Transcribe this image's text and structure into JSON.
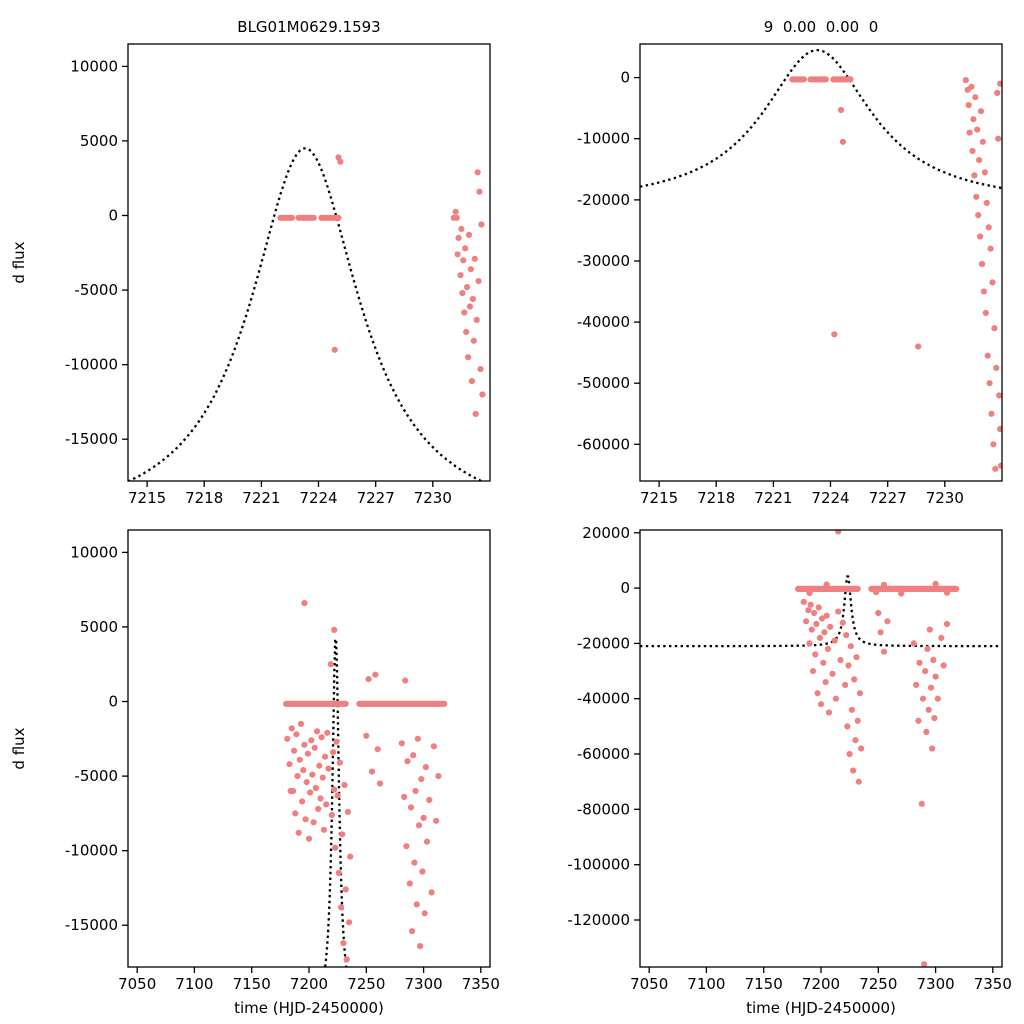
{
  "figure": {
    "background": "#ffffff",
    "point_color": "#F08080",
    "curve_color": "#000000"
  },
  "chart_data": [
    {
      "id": "top-left",
      "type": "scatter",
      "title": "BLG01M0629.1593",
      "xlabel": "",
      "ylabel": "d flux",
      "xlim": [
        7214,
        7233
      ],
      "ylim": [
        -17800,
        11500
      ],
      "xticks": [
        7215,
        7218,
        7221,
        7224,
        7227,
        7230
      ],
      "yticks": [
        -15000,
        -10000,
        -5000,
        0,
        5000,
        10000
      ],
      "grid": false,
      "legend": false,
      "model_curve": {
        "shape": "lorentzian",
        "t0": 7223.3,
        "peak": 4500,
        "baseline": -21000,
        "width": 3.5
      },
      "zero_band": {
        "y": -150,
        "step": 0.1,
        "runs": [
          [
            7222.0,
            7222.6
          ],
          [
            7222.95,
            7223.8
          ],
          [
            7224.15,
            7225.05
          ]
        ]
      },
      "points": [
        [
          7225.05,
          3900
        ],
        [
          7225.15,
          3600
        ],
        [
          7224.85,
          -9000
        ],
        [
          7231.1,
          -150
        ],
        [
          7231.25,
          -150
        ],
        [
          7231.2,
          250
        ],
        [
          7231.35,
          -1500
        ],
        [
          7231.3,
          -2600
        ],
        [
          7231.45,
          -4000
        ],
        [
          7231.5,
          -900
        ],
        [
          7231.55,
          -5200
        ],
        [
          7231.6,
          -3000
        ],
        [
          7231.65,
          -6500
        ],
        [
          7231.7,
          -2200
        ],
        [
          7231.75,
          -7800
        ],
        [
          7231.8,
          -4800
        ],
        [
          7231.85,
          -9500
        ],
        [
          7231.9,
          -1300
        ],
        [
          7231.95,
          -6100
        ],
        [
          7232.0,
          -3600
        ],
        [
          7232.05,
          -11100
        ],
        [
          7232.1,
          -5600
        ],
        [
          7232.15,
          -8400
        ],
        [
          7232.2,
          -2900
        ],
        [
          7232.25,
          -13300
        ],
        [
          7232.3,
          -7000
        ],
        [
          7232.35,
          2900
        ],
        [
          7232.4,
          -4400
        ],
        [
          7232.45,
          1600
        ],
        [
          7232.5,
          -10300
        ],
        [
          7232.55,
          -600
        ],
        [
          7232.6,
          -12000
        ]
      ]
    },
    {
      "id": "top-right",
      "type": "scatter",
      "title": "9  0.00  0.00  0",
      "xlabel": "",
      "ylabel": "",
      "xlim": [
        7214,
        7233
      ],
      "ylim": [
        -66000,
        5500
      ],
      "xticks": [
        7215,
        7218,
        7221,
        7224,
        7227,
        7230
      ],
      "yticks": [
        -60000,
        -50000,
        -40000,
        -30000,
        -20000,
        -10000,
        0
      ],
      "grid": false,
      "legend": false,
      "model_curve": {
        "shape": "lorentzian",
        "t0": 7223.3,
        "peak": 4500,
        "baseline": -21000,
        "width": 3.5
      },
      "zero_band": {
        "y": -300,
        "step": 0.1,
        "runs": [
          [
            7222.0,
            7222.6
          ],
          [
            7222.95,
            7223.8
          ],
          [
            7224.15,
            7225.05
          ]
        ]
      },
      "points": [
        [
          7224.55,
          -5300
        ],
        [
          7224.65,
          -10500
        ],
        [
          7224.2,
          -42000
        ],
        [
          7228.6,
          -44000
        ],
        [
          7231.1,
          -400
        ],
        [
          7231.2,
          -2000
        ],
        [
          7231.25,
          -4500
        ],
        [
          7231.3,
          -9000
        ],
        [
          7231.4,
          -1500
        ],
        [
          7231.45,
          -12000
        ],
        [
          7231.5,
          -6800
        ],
        [
          7231.55,
          -16000
        ],
        [
          7231.6,
          -3200
        ],
        [
          7231.65,
          -19500
        ],
        [
          7231.7,
          -8500
        ],
        [
          7231.75,
          -22500
        ],
        [
          7231.8,
          -13500
        ],
        [
          7231.85,
          -26000
        ],
        [
          7231.9,
          -5500
        ],
        [
          7231.95,
          -30500
        ],
        [
          7232.0,
          -10500
        ],
        [
          7232.05,
          -35000
        ],
        [
          7232.1,
          -15500
        ],
        [
          7232.15,
          -38500
        ],
        [
          7232.2,
          -20500
        ],
        [
          7232.25,
          -45500
        ],
        [
          7232.3,
          -24500
        ],
        [
          7232.35,
          -50000
        ],
        [
          7232.4,
          -28000
        ],
        [
          7232.45,
          -55000
        ],
        [
          7232.5,
          -33500
        ],
        [
          7232.55,
          -60000
        ],
        [
          7232.6,
          -41000
        ],
        [
          7232.65,
          -64000
        ],
        [
          7232.7,
          -47500
        ],
        [
          7232.75,
          -2500
        ],
        [
          7232.8,
          -10000
        ],
        [
          7232.85,
          -52000
        ],
        [
          7232.9,
          -57500
        ],
        [
          7232.95,
          -63500
        ],
        [
          7232.9,
          -1000
        ]
      ]
    },
    {
      "id": "bottom-left",
      "type": "scatter",
      "title": "",
      "xlabel": "time (HJD-2450000)",
      "ylabel": "d flux",
      "xlim": [
        7042,
        7358
      ],
      "ylim": [
        -17800,
        11500
      ],
      "xticks": [
        7050,
        7100,
        7150,
        7200,
        7250,
        7300,
        7350
      ],
      "yticks": [
        -15000,
        -10000,
        -5000,
        0,
        5000,
        10000
      ],
      "grid": false,
      "legend": false,
      "model_curve": {
        "shape": "lorentzian",
        "t0": 7223.3,
        "peak": 4500,
        "baseline": -21000,
        "width": 3.5
      },
      "zero_band": {
        "y": -150,
        "step": 1.0,
        "runs": [
          [
            7180,
            7232.5
          ],
          [
            7244,
            7318
          ]
        ]
      },
      "points": [
        [
          7181,
          -2500
        ],
        [
          7183,
          -4200
        ],
        [
          7184,
          -6000
        ],
        [
          7185,
          -1800
        ],
        [
          7186,
          -6000
        ],
        [
          7187,
          -3300
        ],
        [
          7188,
          -7500
        ],
        [
          7189,
          -2200
        ],
        [
          7190,
          -5000
        ],
        [
          7191,
          -8800
        ],
        [
          7192,
          -3900
        ],
        [
          7193,
          -1500
        ],
        [
          7194,
          -6700
        ],
        [
          7195,
          -4600
        ],
        [
          7196,
          6600
        ],
        [
          7196,
          -2900
        ],
        [
          7197,
          -7900
        ],
        [
          7198,
          -5400
        ],
        [
          7199,
          -3500
        ],
        [
          7200,
          -9200
        ],
        [
          7201,
          -6100
        ],
        [
          7202,
          -2600
        ],
        [
          7203,
          -4900
        ],
        [
          7204,
          -8100
        ],
        [
          7205,
          -3100
        ],
        [
          7206,
          -5800
        ],
        [
          7207,
          -2000
        ],
        [
          7208,
          -7200
        ],
        [
          7209,
          -4300
        ],
        [
          7210,
          -6500
        ],
        [
          7211,
          -2400
        ],
        [
          7212,
          -5100
        ],
        [
          7213,
          -8600
        ],
        [
          7214,
          -3700
        ],
        [
          7215,
          -6900
        ],
        [
          7216,
          -2100
        ],
        [
          7217,
          -4500
        ],
        [
          7219,
          2500
        ],
        [
          7220,
          -7600
        ],
        [
          7221,
          -3400
        ],
        [
          7222,
          4800
        ],
        [
          7222,
          -5900
        ],
        [
          7223,
          -9800
        ],
        [
          7224,
          -2700
        ],
        [
          7225,
          -6300
        ],
        [
          7226,
          -11500
        ],
        [
          7227,
          -4100
        ],
        [
          7228,
          -13800
        ],
        [
          7229,
          -8900
        ],
        [
          7230,
          -16200
        ],
        [
          7231,
          -5600
        ],
        [
          7232,
          -12600
        ],
        [
          7233,
          -17300
        ],
        [
          7234,
          -7400
        ],
        [
          7235,
          -14800
        ],
        [
          7236,
          -10400
        ],
        [
          7250,
          -2300
        ],
        [
          7252,
          1500
        ],
        [
          7255,
          -4700
        ],
        [
          7258,
          1800
        ],
        [
          7260,
          -3200
        ],
        [
          7262,
          -5500
        ],
        [
          7281,
          -2800
        ],
        [
          7283,
          -6400
        ],
        [
          7284,
          1400
        ],
        [
          7285,
          -9700
        ],
        [
          7286,
          -4000
        ],
        [
          7288,
          -12200
        ],
        [
          7289,
          -7100
        ],
        [
          7290,
          -15400
        ],
        [
          7291,
          -3600
        ],
        [
          7292,
          -10800
        ],
        [
          7293,
          -6000
        ],
        [
          7294,
          -13600
        ],
        [
          7295,
          -2500
        ],
        [
          7296,
          -8300
        ],
        [
          7297,
          -16400
        ],
        [
          7298,
          -5200
        ],
        [
          7299,
          -11400
        ],
        [
          7300,
          -7800
        ],
        [
          7301,
          -14200
        ],
        [
          7302,
          -4400
        ],
        [
          7303,
          -9400
        ],
        [
          7305,
          -6600
        ],
        [
          7307,
          -12800
        ],
        [
          7309,
          -3000
        ],
        [
          7311,
          -8000
        ],
        [
          7313,
          -5000
        ]
      ]
    },
    {
      "id": "bottom-right",
      "type": "scatter",
      "title": "",
      "xlabel": "time (HJD-2450000)",
      "ylabel": "",
      "xlim": [
        7042,
        7358
      ],
      "ylim": [
        -137000,
        21000
      ],
      "xticks": [
        7050,
        7100,
        7150,
        7200,
        7250,
        7300,
        7350
      ],
      "yticks": [
        -120000,
        -100000,
        -80000,
        -60000,
        -40000,
        -20000,
        0,
        20000
      ],
      "grid": false,
      "legend": false,
      "model_curve": {
        "shape": "lorentzian",
        "t0": 7223.3,
        "peak": 4500,
        "baseline": -21000,
        "width": 3.5
      },
      "zero_band": {
        "y": -300,
        "step": 1.0,
        "runs": [
          [
            7180,
            7232.5
          ],
          [
            7244,
            7318
          ]
        ]
      },
      "points": [
        [
          7185,
          -5000
        ],
        [
          7187,
          -12000
        ],
        [
          7189,
          -8000
        ],
        [
          7190,
          -20000
        ],
        [
          7190,
          -1800
        ],
        [
          7191,
          -6000
        ],
        [
          7192,
          -15000
        ],
        [
          7193,
          -30000
        ],
        [
          7194,
          -9000
        ],
        [
          7195,
          -24000
        ],
        [
          7196,
          -13000
        ],
        [
          7197,
          -38000
        ],
        [
          7198,
          -7000
        ],
        [
          7199,
          -18000
        ],
        [
          7200,
          -42000
        ],
        [
          7201,
          -11000
        ],
        [
          7202,
          -27000
        ],
        [
          7203,
          -16000
        ],
        [
          7204,
          -34000
        ],
        [
          7205,
          -10000
        ],
        [
          7205,
          1300
        ],
        [
          7206,
          -22000
        ],
        [
          7207,
          -45000
        ],
        [
          7208,
          -14000
        ],
        [
          7210,
          -31000
        ],
        [
          7212,
          -19000
        ],
        [
          7213,
          -40000
        ],
        [
          7215,
          20500
        ],
        [
          7215,
          -8500
        ],
        [
          7217,
          -26000
        ],
        [
          7219,
          -12500
        ],
        [
          7221,
          -35000
        ],
        [
          7222,
          -17000
        ],
        [
          7223,
          -50000
        ],
        [
          7224,
          -28000
        ],
        [
          7225,
          -60000
        ],
        [
          7226,
          -21000
        ],
        [
          7227,
          -44000
        ],
        [
          7228,
          -66000
        ],
        [
          7229,
          -33000
        ],
        [
          7230,
          -55000
        ],
        [
          7231,
          -25000
        ],
        [
          7232,
          -48000
        ],
        [
          7233,
          -70000
        ],
        [
          7234,
          -38000
        ],
        [
          7235,
          -58000
        ],
        [
          7248,
          -1500
        ],
        [
          7250,
          -9000
        ],
        [
          7252,
          -16000
        ],
        [
          7255,
          -23000
        ],
        [
          7255,
          1200
        ],
        [
          7258,
          -12000
        ],
        [
          7270,
          -2000
        ],
        [
          7281,
          -20000
        ],
        [
          7283,
          -35000
        ],
        [
          7285,
          -48000
        ],
        [
          7286,
          -27000
        ],
        [
          7288,
          -78000
        ],
        [
          7289,
          -40000
        ],
        [
          7290,
          -136000
        ],
        [
          7291,
          -30000
        ],
        [
          7292,
          -52000
        ],
        [
          7293,
          -22000
        ],
        [
          7294,
          -44000
        ],
        [
          7295,
          -15000
        ],
        [
          7296,
          -36000
        ],
        [
          7297,
          -58000
        ],
        [
          7298,
          -26000
        ],
        [
          7299,
          -47000
        ],
        [
          7300,
          -32000
        ],
        [
          7300,
          1500
        ],
        [
          7302,
          -40000
        ],
        [
          7305,
          -18000
        ],
        [
          7307,
          -28000
        ],
        [
          7310,
          -13000
        ],
        [
          7310,
          -1700
        ]
      ]
    }
  ]
}
